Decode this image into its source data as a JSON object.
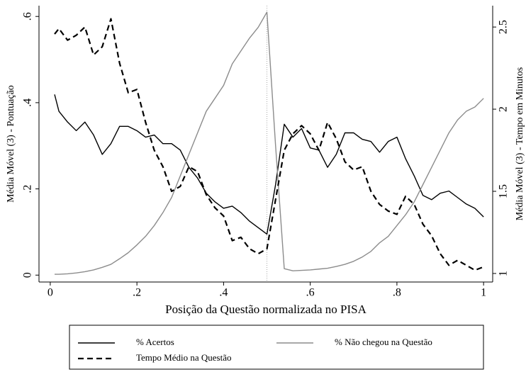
{
  "chart_data": {
    "type": "line",
    "x_label": "Posição da Questão normalizada no PISA",
    "y_label": "Média Móvel (3) - Pontuação",
    "y2_label": "Média Móvel (3) - Tempo em Minutos",
    "x": [
      0.01,
      0.02,
      0.04,
      0.06,
      0.08,
      0.1,
      0.12,
      0.14,
      0.16,
      0.18,
      0.2,
      0.22,
      0.24,
      0.26,
      0.28,
      0.3,
      0.32,
      0.34,
      0.36,
      0.38,
      0.4,
      0.42,
      0.44,
      0.46,
      0.48,
      0.5,
      0.52,
      0.54,
      0.56,
      0.58,
      0.6,
      0.62,
      0.64,
      0.66,
      0.68,
      0.7,
      0.72,
      0.74,
      0.76,
      0.78,
      0.8,
      0.82,
      0.84,
      0.86,
      0.88,
      0.9,
      0.92,
      0.94,
      0.96,
      0.98,
      1.0
    ],
    "series": [
      {
        "name": "% Acertos",
        "color": "#000000",
        "dash": "solid",
        "values": [
          0.419,
          0.38,
          0.355,
          0.335,
          0.355,
          0.325,
          0.28,
          0.305,
          0.345,
          0.345,
          0.335,
          0.32,
          0.325,
          0.305,
          0.305,
          0.29,
          0.25,
          0.225,
          0.19,
          0.17,
          0.155,
          0.16,
          0.145,
          0.125,
          0.11,
          0.095,
          0.21,
          0.35,
          0.32,
          0.34,
          0.295,
          0.29,
          0.25,
          0.28,
          0.33,
          0.33,
          0.315,
          0.31,
          0.285,
          0.31,
          0.32,
          0.27,
          0.23,
          0.185,
          0.175,
          0.19,
          0.195,
          0.18,
          0.165,
          0.155,
          0.135
        ]
      },
      {
        "name": "% Não chegou na Questão",
        "color": "#8c8c8c",
        "dash": "solid",
        "values": [
          0.002,
          0.002,
          0.003,
          0.005,
          0.008,
          0.012,
          0.018,
          0.025,
          0.038,
          0.052,
          0.07,
          0.09,
          0.115,
          0.145,
          0.18,
          0.23,
          0.28,
          0.33,
          0.38,
          0.41,
          0.44,
          0.49,
          0.52,
          0.55,
          0.575,
          0.61,
          0.3,
          0.015,
          0.01,
          0.011,
          0.012,
          0.014,
          0.016,
          0.02,
          0.025,
          0.032,
          0.042,
          0.055,
          0.075,
          0.09,
          0.115,
          0.14,
          0.17,
          0.21,
          0.25,
          0.29,
          0.33,
          0.36,
          0.38,
          0.39,
          0.41
        ]
      },
      {
        "name": "Tempo Médio na Questão",
        "color": "#000000",
        "dash": "dashed",
        "axis": "y2",
        "values": [
          2.457,
          2.49,
          2.42,
          2.45,
          2.5,
          2.33,
          2.38,
          2.55,
          2.28,
          2.1,
          2.12,
          1.92,
          1.75,
          1.65,
          1.5,
          1.53,
          1.65,
          1.62,
          1.48,
          1.4,
          1.35,
          1.2,
          1.22,
          1.15,
          1.12,
          1.15,
          1.45,
          1.75,
          1.85,
          1.9,
          1.85,
          1.75,
          1.92,
          1.82,
          1.68,
          1.63,
          1.65,
          1.5,
          1.42,
          1.38,
          1.36,
          1.47,
          1.42,
          1.3,
          1.23,
          1.12,
          1.05,
          1.08,
          1.05,
          1.02,
          1.04
        ]
      }
    ],
    "reference_line": 0.5,
    "xlim": [
      -0.026,
      1.021
    ],
    "xticks": [
      0,
      {
        "value": 0.2,
        "label": ".2"
      },
      {
        "value": 0.4,
        "label": ".4"
      },
      {
        "value": 0.6,
        "label": ".6"
      },
      {
        "value": 0.8,
        "label": ".8"
      },
      1
    ],
    "ylim": [
      -0.016,
      0.625
    ],
    "yticks": [
      0,
      {
        "value": 0.2,
        "label": ".2"
      },
      {
        "value": 0.4,
        "label": ".4"
      },
      {
        "value": 0.6,
        "label": ".6"
      }
    ],
    "y2lim": [
      0.948,
      2.63
    ],
    "y2ticks": [
      1,
      1.5,
      2,
      2.5
    ]
  }
}
